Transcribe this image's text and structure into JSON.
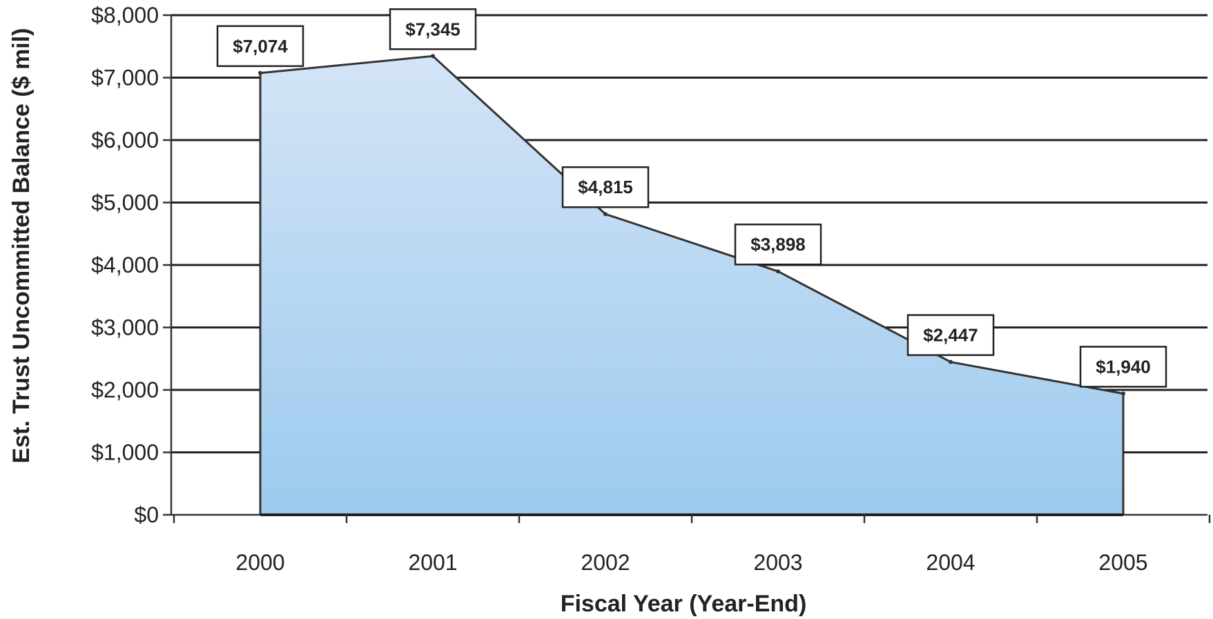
{
  "chart_data": {
    "type": "area",
    "categories": [
      "2000",
      "2001",
      "2002",
      "2003",
      "2004",
      "2005"
    ],
    "values": [
      7074,
      7345,
      4815,
      3898,
      2447,
      1940
    ],
    "data_labels": [
      "$7,074",
      "$7,345",
      "$4,815",
      "$3,898",
      "$2,447",
      "$1,940"
    ],
    "xlabel": "Fiscal Year (Year-End)",
    "ylabel": "Est. Trust Uncommitted Balance ($ mil)",
    "ylim": [
      0,
      8000
    ],
    "yticks": [
      0,
      1000,
      2000,
      3000,
      4000,
      5000,
      6000,
      7000,
      8000
    ],
    "ytick_labels": [
      "$0",
      "$1,000",
      "$2,000",
      "$3,000",
      "$4,000",
      "$5,000",
      "$6,000",
      "$7,000",
      "$8,000"
    ],
    "grid": true,
    "colors": {
      "fill_top": "#d4e4f6",
      "fill_bottom": "#9ccaee",
      "line": "#333333"
    }
  }
}
